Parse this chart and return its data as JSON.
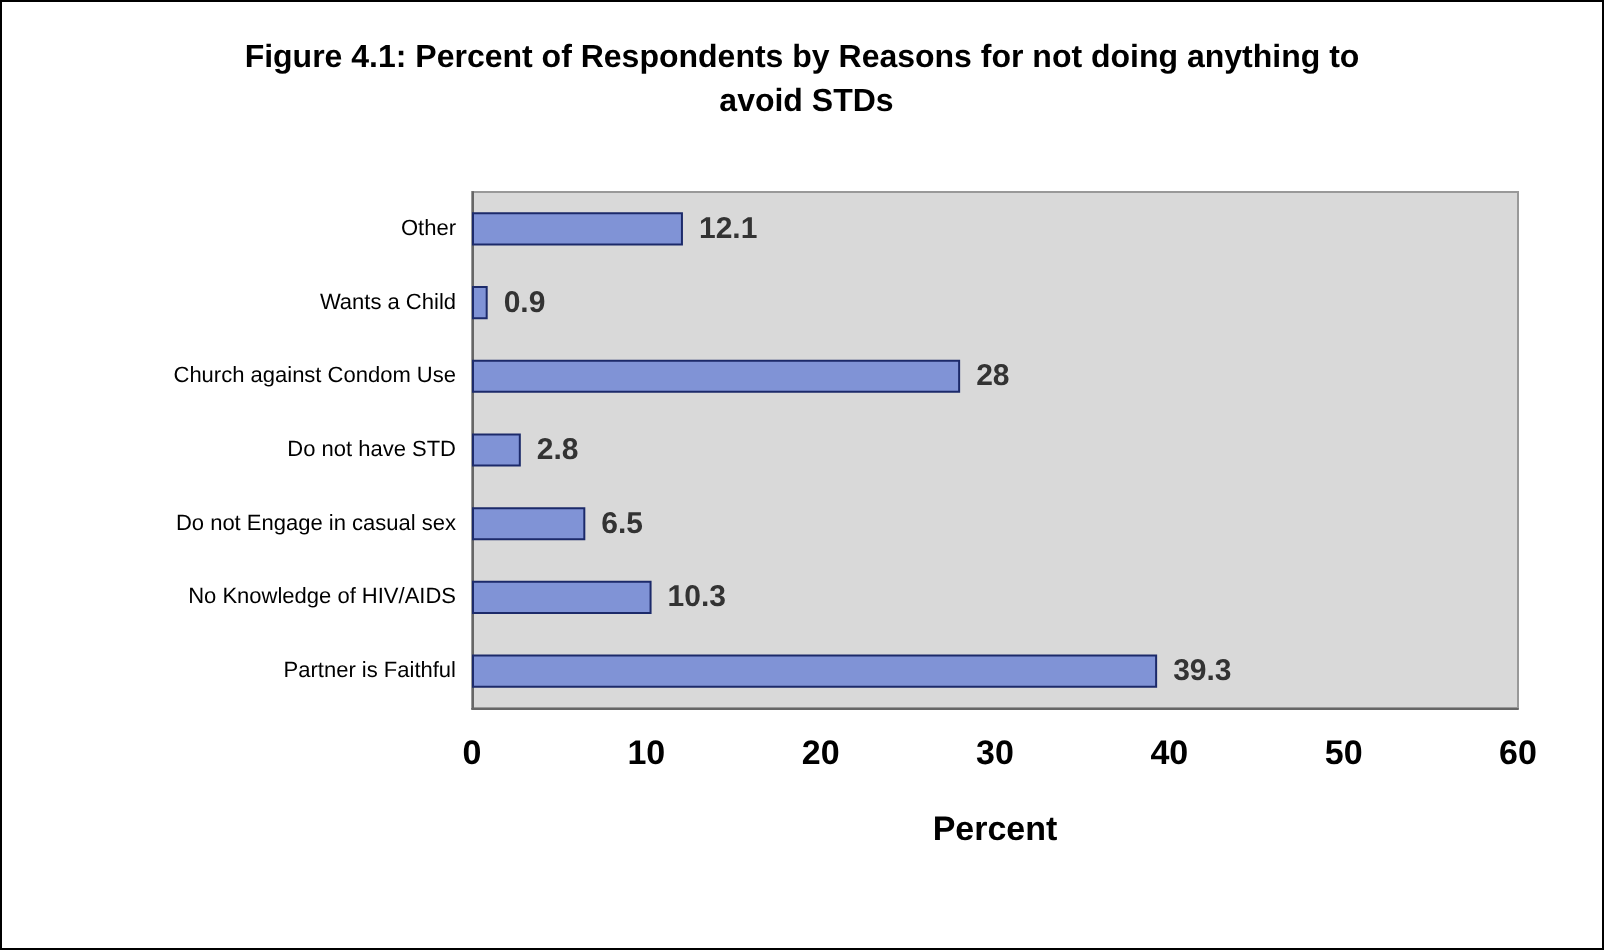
{
  "chart_data": {
    "type": "bar",
    "orientation": "horizontal",
    "title": "Figure 4.1: Percent of Respondents by Reasons for not doing anything to avoid STDs",
    "xlabel": "Percent",
    "categories": [
      "Other",
      "Wants a Child",
      "Church against Condom Use",
      "Do not have STD",
      "Do not Engage in casual sex",
      "No Knowledge of HIV/AIDS",
      "Partner is Faithful"
    ],
    "values": [
      12.1,
      0.9,
      28,
      2.8,
      6.5,
      10.3,
      39.3
    ],
    "color": "#8093d6",
    "xlim": [
      0,
      60
    ],
    "xticks": [
      0,
      10,
      20,
      30,
      40,
      50,
      60
    ],
    "data_labels": true,
    "grid": false
  }
}
